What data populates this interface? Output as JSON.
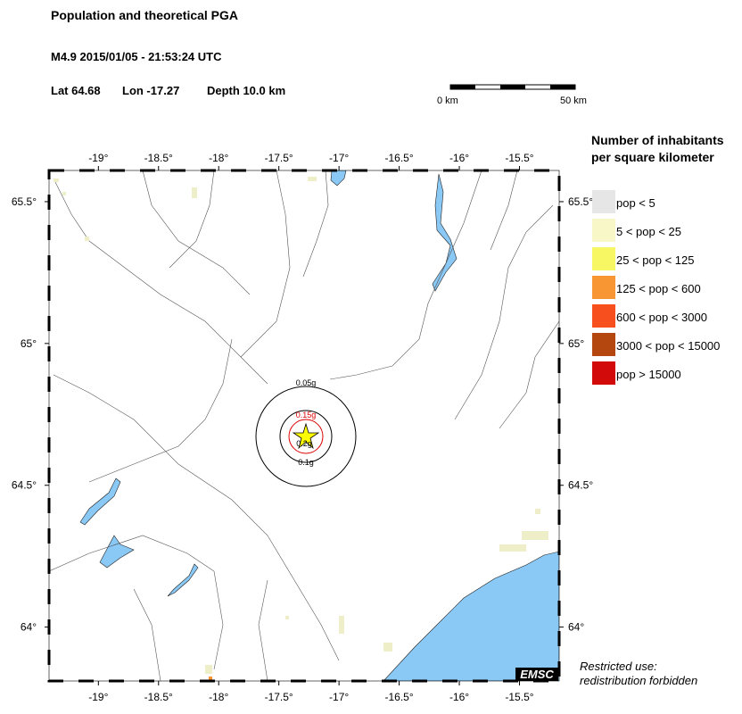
{
  "header": {
    "title": "Population and theoretical PGA",
    "event": "M4.9  2015/01/05 - 21:53:24 UTC",
    "lat": "Lat 64.68",
    "lon": "Lon -17.27",
    "depth": "Depth  10.0 km"
  },
  "scale_bar": {
    "start": "0 km",
    "end": "50 km"
  },
  "map": {
    "xlim": [
      -19.41,
      -15.17
    ],
    "ylim": [
      63.81,
      65.61
    ],
    "xticks": [
      {
        "value": -19,
        "label": "-19°"
      },
      {
        "value": -18.5,
        "label": "-18.5°"
      },
      {
        "value": -18,
        "label": "-18°"
      },
      {
        "value": -17.5,
        "label": "-17.5°"
      },
      {
        "value": -17,
        "label": "-17°"
      },
      {
        "value": -16.5,
        "label": "-16.5°"
      },
      {
        "value": -16,
        "label": "-16°"
      },
      {
        "value": -15.5,
        "label": "-15.5°"
      }
    ],
    "yticks": [
      {
        "value": 64,
        "label": "64°"
      },
      {
        "value": 64.5,
        "label": "64.5°"
      },
      {
        "value": 65,
        "label": "65°"
      },
      {
        "value": 65.5,
        "label": "65.5°"
      }
    ],
    "pga_labels": {
      "outer": "0.05g",
      "red": "0.15g",
      "inner": "0.2g",
      "middle": "0.1g"
    },
    "logo": "EMSC"
  },
  "legend": {
    "title": [
      "Number of inhabitants",
      "per square kilometer"
    ],
    "items": [
      {
        "label": "pop < 5",
        "color": "#e6e6e6"
      },
      {
        "label": "5 < pop < 25",
        "color": "#f7f7c8"
      },
      {
        "label": "25 < pop < 125",
        "color": "#f7f764"
      },
      {
        "label": "125 < pop < 600",
        "color": "#f79632"
      },
      {
        "label": "600 < pop < 3000",
        "color": "#f7501e"
      },
      {
        "label": "3000 < pop < 15000",
        "color": "#b4460f"
      },
      {
        "label": "pop > 15000",
        "color": "#d20a0a"
      }
    ]
  },
  "footer": [
    "Restricted use:",
    "redistribution forbidden"
  ]
}
